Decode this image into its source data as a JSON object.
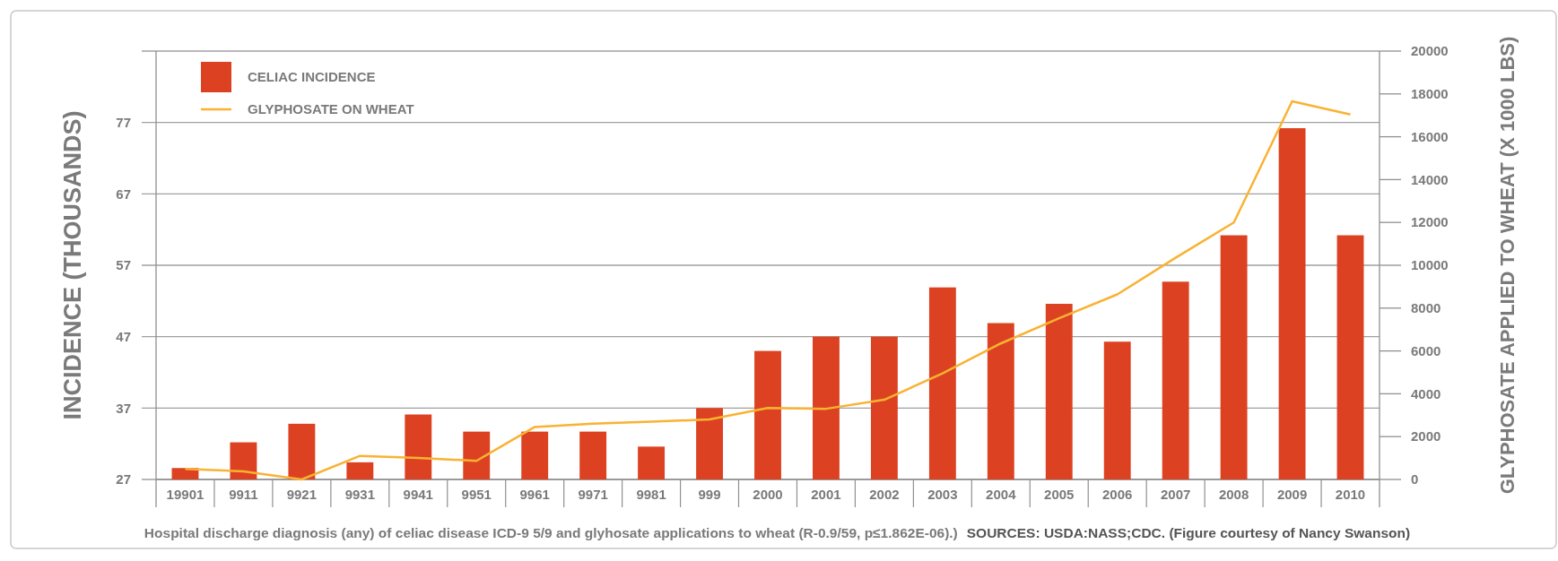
{
  "chart_data": {
    "type": "bar",
    "ylabel": "INCIDENCE (THOUSANDS)",
    "y2label": "GLYPHOSATE APPLIED TO WHEAT (X 1000 LBS)",
    "categories": [
      "19901",
      "9911",
      "9921",
      "9931",
      "9941",
      "9951",
      "9961",
      "9971",
      "9981",
      "999",
      "2000",
      "2001",
      "2002",
      "2003",
      "2004",
      "2005",
      "2006",
      "2007",
      "2008",
      "2009",
      "2010"
    ],
    "series": [
      {
        "name": "CELIAC INCIDENCE",
        "color": "#dc4221",
        "values": [
          28.6,
          32.2,
          34.8,
          29.4,
          36.1,
          33.7,
          33.7,
          33.7,
          31.6,
          37,
          45,
          47,
          47,
          53.9,
          48.9,
          51.6,
          46.3,
          54.7,
          61.2,
          76.2,
          61.2
        ]
      },
      {
        "name": "GLYPHOSATE ON WHEAT",
        "type": "line",
        "axis": "y2",
        "color": "#f9b233",
        "values": [
          490,
          380,
          0,
          1100,
          1000,
          870,
          2450,
          2600,
          2700,
          2800,
          3340,
          3300,
          3720,
          4950,
          6350,
          7530,
          8640,
          10350,
          12000,
          17660,
          17040
        ]
      }
    ],
    "ylim": [
      27,
      87
    ],
    "yticks": [
      27,
      37,
      47,
      57,
      67,
      77,
      {
        "value": 87,
        "label": null
      }
    ],
    "y2lim": [
      0,
      20000
    ],
    "y2ticks": [
      0,
      2000,
      4000,
      6000,
      8000,
      10000,
      12000,
      14000,
      16000,
      18000,
      20000
    ],
    "grid": "y",
    "legend": "top left",
    "marker": "none",
    "line_style": "solid",
    "annotations": [
      "Hospital discharge diagnosis (any) of celiac disease ICD-9 5/9 and glyhosate applications to wheat (R-0.9/59, p≤1.862E-06).)",
      "SOURCES: USDA:NASS;CDC. (Figure courtesy of Nancy Swanson)"
    ]
  }
}
